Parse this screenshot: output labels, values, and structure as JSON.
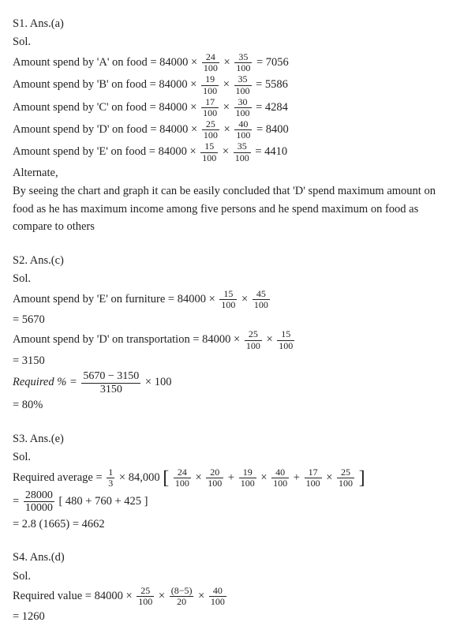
{
  "s1": {
    "header": "S1. Ans.(a)",
    "sol": "Sol.",
    "lines": [
      {
        "pre": "Amount spend by 'A' on food = 84000 × ",
        "f1n": "24",
        "f1d": "100",
        "mid": " × ",
        "f2n": "35",
        "f2d": "100",
        "eq": " = 7056"
      },
      {
        "pre": "Amount spend by 'B' on food = 84000 × ",
        "f1n": "19",
        "f1d": "100",
        "mid": " × ",
        "f2n": "35",
        "f2d": "100",
        "eq": " = 5586"
      },
      {
        "pre": "Amount spend by 'C' on food = 84000 × ",
        "f1n": "17",
        "f1d": "100",
        "mid": " × ",
        "f2n": "30",
        "f2d": "100",
        "eq": " = 4284"
      },
      {
        "pre": "Amount spend by 'D' on food = 84000 × ",
        "f1n": "25",
        "f1d": "100",
        "mid": " × ",
        "f2n": "40",
        "f2d": "100",
        "eq": " = 8400"
      },
      {
        "pre": "Amount spend by 'E' on food = 84000 × ",
        "f1n": "15",
        "f1d": "100",
        "mid": " × ",
        "f2n": "35",
        "f2d": "100",
        "eq": " = 4410"
      }
    ],
    "alt": "Alternate,",
    "para": "By seeing the chart and graph it can be easily concluded that 'D' spend maximum amount on food as he has maximum income among five persons and he spend maximum on food as compare to others"
  },
  "s2": {
    "header": "S2. Ans.(c)",
    "sol": "Sol.",
    "l1": {
      "pre": "Amount spend by 'E' on furniture = 84000 × ",
      "f1n": "15",
      "f1d": "100",
      "mid": " × ",
      "f2n": "45",
      "f2d": "100"
    },
    "r1": "= 5670",
    "l2": {
      "pre": "Amount spend by 'D' on transportation = 84000 × ",
      "f1n": "25",
      "f1d": "100",
      "mid": " × ",
      "f2n": "15",
      "f2d": "100"
    },
    "r2": "= 3150",
    "req": "Required % = ",
    "reqfrac": {
      "num": "5670 − 3150",
      "den": "3150"
    },
    "reqpost": " × 100",
    "r3": "= 80%"
  },
  "s3": {
    "header": "S3. Ans.(e)",
    "sol": "Sol.",
    "pre": "Required average = ",
    "f0": {
      "n": "1",
      "d": "3"
    },
    "mid0": " × 84,000 ",
    "terms": [
      {
        "an": "24",
        "ad": "100",
        "bn": "20",
        "bd": "100"
      },
      {
        "an": "19",
        "ad": "100",
        "bn": "40",
        "bd": "100"
      },
      {
        "an": "17",
        "ad": "100",
        "bn": "25",
        "bd": "100"
      }
    ],
    "eq2pre": "= ",
    "eq2f": {
      "num": "28000",
      "den": "10000"
    },
    "eq2post": " [ 480 + 760 + 425 ]",
    "r3": "= 2.8 (1665) = 4662"
  },
  "s4": {
    "header": "S4. Ans.(d)",
    "sol": "Sol.",
    "pre": "Required value = 84000 × ",
    "f1": {
      "n": "25",
      "d": "100"
    },
    "m1": " × ",
    "f2": {
      "n": "(8−5)",
      "d": "20"
    },
    "m2": " × ",
    "f3": {
      "n": "40",
      "d": "100"
    },
    "r": "= 1260"
  }
}
